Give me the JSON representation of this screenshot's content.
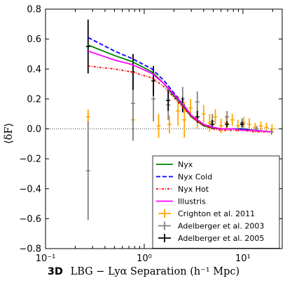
{
  "chart_data": {
    "type": "line",
    "xlabel_prefix": "3D",
    "xlabel_math": "LBG − Lyα Separation (h⁻¹ Mpc)",
    "ylabel": "⟨δF⟩",
    "xscale": "log",
    "xlim": [
      0.1,
      25
    ],
    "ylim": [
      -0.8,
      0.8
    ],
    "x_ticks": [
      {
        "value": 0.1,
        "label": "10⁻¹"
      },
      {
        "value": 1,
        "label": "10⁰"
      },
      {
        "value": 10,
        "label": "10¹"
      }
    ],
    "y_ticks": [
      {
        "value": 0.8,
        "label": "0.8"
      },
      {
        "value": 0.6,
        "label": "0.6"
      },
      {
        "value": 0.4,
        "label": "0.4"
      },
      {
        "value": 0.2,
        "label": "0.2"
      },
      {
        "value": 0.0,
        "label": "0.0"
      },
      {
        "value": -0.2,
        "label": "−0.2"
      },
      {
        "value": -0.4,
        "label": "−0.4"
      },
      {
        "value": -0.6,
        "label": "−0.6"
      },
      {
        "value": -0.8,
        "label": "−0.8"
      }
    ],
    "reference_line": {
      "y": 0.0,
      "style": "dotted"
    },
    "legend_position": "lower right",
    "series": [
      {
        "name": "Nyx",
        "kind": "line",
        "color": "#008000",
        "dash": "solid",
        "x": [
          0.27,
          0.5,
          0.75,
          1.2,
          1.6,
          2.0,
          2.5,
          3.0,
          4.0,
          5.0,
          6.0,
          8.0,
          10.0,
          13.0,
          19.0
        ],
        "y": [
          0.56,
          0.49,
          0.45,
          0.38,
          0.3,
          0.22,
          0.15,
          0.08,
          0.02,
          0.005,
          0.0,
          0.0,
          0.0,
          -0.01,
          -0.02
        ]
      },
      {
        "name": "Nyx Cold",
        "kind": "line",
        "color": "#0000ff",
        "dash": "dashed",
        "x": [
          0.27,
          0.5,
          0.75,
          1.2,
          1.6,
          2.0,
          2.5,
          3.0,
          4.0,
          5.0,
          6.0,
          8.0,
          10.0,
          13.0,
          19.0
        ],
        "y": [
          0.61,
          0.52,
          0.47,
          0.4,
          0.32,
          0.24,
          0.16,
          0.09,
          0.03,
          0.01,
          0.0,
          0.0,
          0.0,
          -0.01,
          -0.02
        ]
      },
      {
        "name": "Nyx Hot",
        "kind": "line",
        "color": "#ff0000",
        "dash": "dashdot",
        "x": [
          0.27,
          0.5,
          0.75,
          1.2,
          1.6,
          2.0,
          2.5,
          3.0,
          4.0,
          5.0,
          6.0,
          8.0,
          10.0,
          13.0,
          19.0
        ],
        "y": [
          0.42,
          0.4,
          0.38,
          0.34,
          0.28,
          0.21,
          0.14,
          0.08,
          0.02,
          0.0,
          -0.01,
          -0.01,
          -0.01,
          -0.02,
          -0.02
        ]
      },
      {
        "name": "Illustris",
        "kind": "line",
        "color": "#ff00ff",
        "dash": "solid",
        "x": [
          0.27,
          0.5,
          0.75,
          1.2,
          1.6,
          2.0,
          2.5,
          3.0,
          4.0,
          5.0,
          6.0,
          8.0,
          10.0,
          13.0,
          19.0
        ],
        "y": [
          0.52,
          0.46,
          0.43,
          0.37,
          0.3,
          0.23,
          0.16,
          0.09,
          0.03,
          0.01,
          0.0,
          0.0,
          -0.01,
          -0.01,
          -0.02
        ]
      },
      {
        "name": "Crighton et al. 2011",
        "kind": "errorbar",
        "color": "#ffa500",
        "x": [
          0.27,
          0.77,
          1.4,
          1.8,
          2.2,
          2.55,
          2.95,
          3.45,
          4.0,
          4.6,
          5.25,
          6.0,
          6.8,
          7.8,
          8.9,
          10.2,
          11.6,
          13.3,
          15.2,
          17.3,
          19.7
        ],
        "y": [
          0.08,
          0.06,
          0.02,
          0.03,
          0.12,
          0.06,
          0.14,
          0.08,
          0.1,
          0.04,
          0.08,
          0.02,
          0.04,
          0.06,
          0.02,
          0.04,
          0.03,
          0.01,
          0.02,
          0.01,
          0.0
        ],
        "yerr": [
          0.05,
          0.12,
          0.08,
          0.06,
          0.1,
          0.12,
          0.06,
          0.08,
          0.06,
          0.06,
          0.05,
          0.05,
          0.05,
          0.04,
          0.04,
          0.04,
          0.04,
          0.03,
          0.03,
          0.03,
          0.03
        ]
      },
      {
        "name": "Adelberger et al. 2003",
        "kind": "errorbar",
        "color": "#808080",
        "x": [
          0.27,
          0.77,
          1.24,
          1.75,
          2.45,
          3.45,
          4.9,
          6.9,
          9.8,
          13.8,
          19.5
        ],
        "y": [
          -0.28,
          0.17,
          0.2,
          0.16,
          0.2,
          0.18,
          0.05,
          0.08,
          0.04,
          0.0,
          -0.02
        ],
        "yerr": [
          0.33,
          0.25,
          0.15,
          0.1,
          0.08,
          0.07,
          0.05,
          0.04,
          0.03,
          0.02,
          0.02
        ]
      },
      {
        "name": "Adelberger et al. 2005",
        "kind": "errorbar",
        "color": "#000000",
        "x": [
          0.27,
          0.77,
          1.24,
          1.75,
          2.45,
          3.45,
          4.9,
          6.9,
          9.8
        ],
        "y": [
          0.55,
          0.38,
          0.32,
          0.19,
          0.16,
          0.08,
          0.03,
          0.03,
          0.03
        ],
        "yerr": [
          0.18,
          0.12,
          0.1,
          0.07,
          0.05,
          0.04,
          0.03,
          0.02,
          0.02
        ]
      }
    ]
  }
}
